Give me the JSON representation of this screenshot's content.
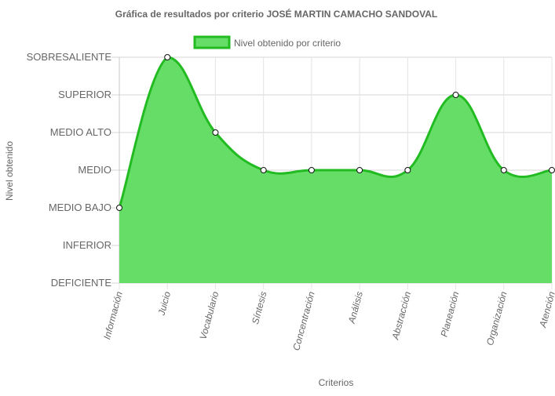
{
  "chart_data": {
    "type": "area",
    "title": "Gráfica de resultados por criterio JOSÉ MARTIN CAMACHO SANDOVAL",
    "xlabel": "Criterios",
    "ylabel": "Nivel obtenido",
    "categories": [
      "Información",
      "Juicio",
      "Vocabulario",
      "Síntesis",
      "Concentración",
      "Análisis",
      "Abstracción",
      "Planeación",
      "Organización",
      "Atención"
    ],
    "y_levels": [
      "DEFICIENTE",
      "INFERIOR",
      "MEDIO BAJO",
      "MEDIO",
      "MEDIO ALTO",
      "SUPERIOR",
      "SOBRESALIENTE"
    ],
    "ylim": [
      0,
      6
    ],
    "grid": true,
    "legend_position": "top",
    "series": [
      {
        "name": "Nivel obtenido por criterio",
        "values": [
          2,
          6,
          4,
          3,
          3,
          3,
          3,
          5,
          3,
          3
        ],
        "value_labels": [
          "MEDIO BAJO",
          "SOBRESALIENTE",
          "MEDIO ALTO",
          "MEDIO",
          "MEDIO",
          "MEDIO",
          "MEDIO",
          "SUPERIOR",
          "MEDIO",
          "MEDIO"
        ],
        "fill_color": "#66dd66",
        "line_color": "#22bb22"
      }
    ]
  }
}
